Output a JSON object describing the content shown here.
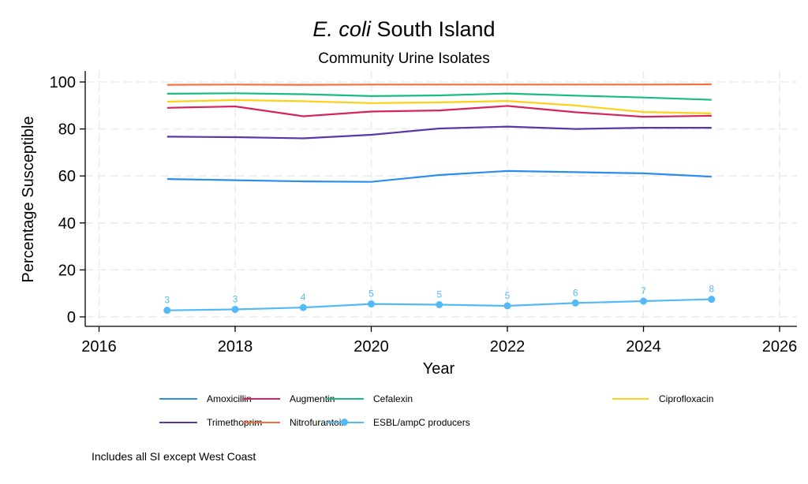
{
  "chart_data": {
    "type": "line",
    "title_italic": "E. coli",
    "title_rest": " South Island",
    "subtitle": "Community Urine Isolates",
    "xlabel": "Year",
    "ylabel": "Percentage Susceptible",
    "xlim": [
      2016,
      2026
    ],
    "ylim": [
      -4,
      105
    ],
    "xticks": [
      2016,
      2018,
      2020,
      2022,
      2024,
      2026
    ],
    "yticks": [
      0,
      20,
      40,
      60,
      80,
      100
    ],
    "grid": true,
    "legend_position": "bottom",
    "x": [
      2017,
      2018,
      2019,
      2020,
      2021,
      2022,
      2023,
      2024,
      2025
    ],
    "series": [
      {
        "name": "Amoxicillin",
        "color": "#2c8df0",
        "markers": false,
        "values": [
          58.7,
          58.2,
          57.7,
          57.5,
          60.4,
          62.1,
          61.6,
          61.1,
          59.7
        ]
      },
      {
        "name": "Augmentin",
        "color": "#d6245e",
        "markers": false,
        "values": [
          89.0,
          89.6,
          85.4,
          87.4,
          87.9,
          89.8,
          87.1,
          85.2,
          85.6
        ]
      },
      {
        "name": "Cefalexin",
        "color": "#18bb84",
        "markers": false,
        "values": [
          95.0,
          95.2,
          94.8,
          94.0,
          94.3,
          95.1,
          94.2,
          93.4,
          92.4
        ]
      },
      {
        "name": "Ciprofloxacin",
        "color": "#fcd116",
        "markers": false,
        "values": [
          91.6,
          92.3,
          91.8,
          91.0,
          91.3,
          91.9,
          90.0,
          87.2,
          86.6
        ]
      },
      {
        "name": "Trimethoprim",
        "color": "#5b36a8",
        "markers": false,
        "values": [
          76.7,
          76.5,
          76.0,
          77.5,
          80.2,
          81.0,
          80.0,
          80.5,
          80.5
        ]
      },
      {
        "name": "Nitrofurantoin",
        "color": "#f5703c",
        "markers": false,
        "values": [
          98.8,
          98.9,
          98.8,
          98.9,
          98.9,
          98.9,
          98.9,
          98.9,
          99.0
        ]
      },
      {
        "name": "ESBL/ampC producers",
        "color": "#56b9f7",
        "markers": true,
        "values": [
          2.8,
          3.2,
          4.0,
          5.5,
          5.2,
          4.7,
          5.9,
          6.7,
          7.5
        ],
        "labels": [
          "3",
          "3",
          "4",
          "5",
          "5",
          "5",
          "6",
          "7",
          "8"
        ]
      }
    ]
  },
  "note": "Includes all SI except West Coast"
}
